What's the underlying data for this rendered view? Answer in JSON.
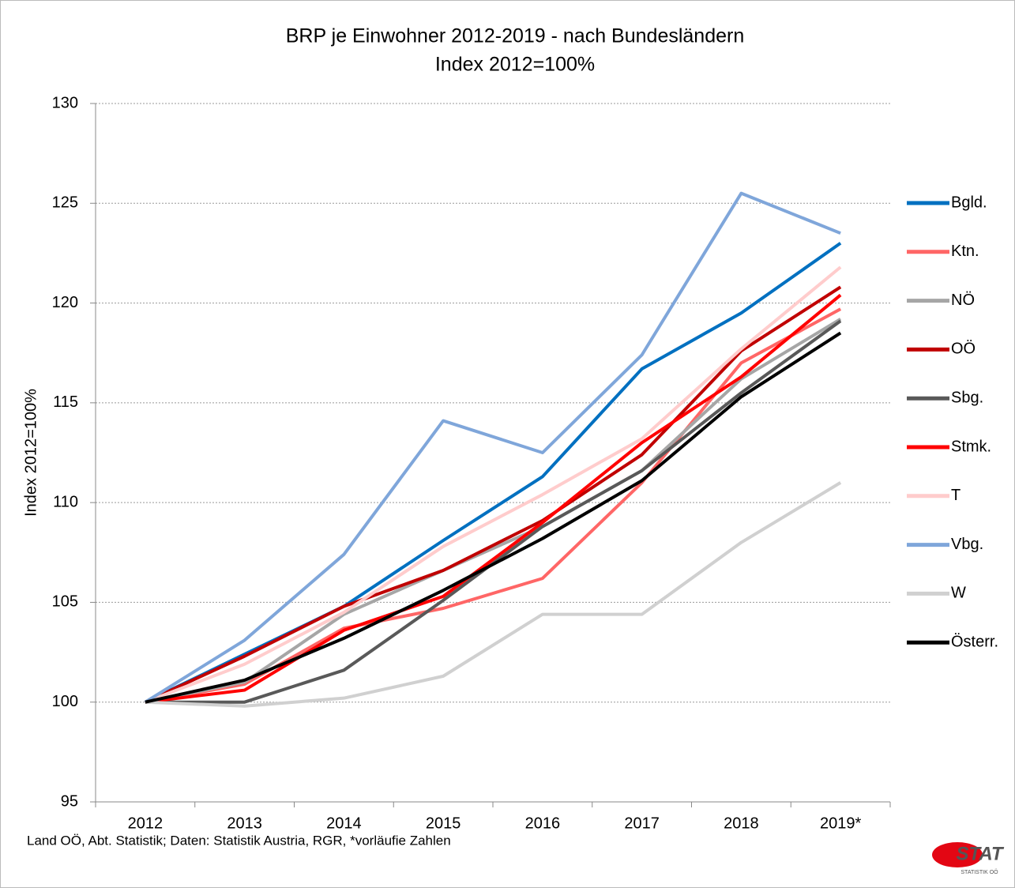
{
  "chart_data": {
    "type": "line",
    "title": "BRP je Einwohner 2012-2019 - nach Bundesländern",
    "subtitle": "Index 2012=100%",
    "y_label": "Index 2012=100%",
    "source": "Land OÖ, Abt. Statistik; Daten: Statistik Austria, RGR, *vorläufie Zahlen",
    "logo": {
      "text": "STAT",
      "subtext": "STATISTIK OÖ"
    },
    "categories": [
      "2012",
      "2013",
      "2014",
      "2015",
      "2016",
      "2017",
      "2018",
      "2019*"
    ],
    "ylim": [
      95,
      130
    ],
    "yticks": [
      95,
      100,
      105,
      110,
      115,
      120,
      125,
      130
    ],
    "grid": true,
    "legend": "right",
    "series": [
      {
        "name": "Bgld.",
        "color": "#0070c0",
        "values": [
          100,
          102.4,
          104.8,
          108.1,
          111.3,
          116.7,
          119.5,
          123.0
        ]
      },
      {
        "name": "Ktn.",
        "color": "#ff6666",
        "values": [
          100,
          100.9,
          103.7,
          104.7,
          106.2,
          111.0,
          117.0,
          119.7
        ]
      },
      {
        "name": "NÖ",
        "color": "#a6a6a6",
        "values": [
          100,
          101.0,
          104.4,
          106.6,
          108.8,
          111.6,
          116.2,
          119.2
        ]
      },
      {
        "name": "OÖ",
        "color": "#c00000",
        "values": [
          100,
          102.3,
          104.8,
          106.6,
          109.1,
          112.4,
          117.6,
          120.8
        ]
      },
      {
        "name": "Sbg.",
        "color": "#595959",
        "values": [
          100,
          100.0,
          101.6,
          105.1,
          108.8,
          111.6,
          115.5,
          119.1
        ]
      },
      {
        "name": "Stmk.",
        "color": "#ff0000",
        "values": [
          100,
          100.6,
          103.6,
          105.3,
          109.0,
          113.0,
          116.3,
          120.4
        ]
      },
      {
        "name": "T",
        "color": "#ffcccc",
        "values": [
          100,
          101.9,
          104.5,
          107.8,
          110.4,
          113.2,
          117.7,
          121.8
        ]
      },
      {
        "name": "Vbg.",
        "color": "#7fa6da",
        "values": [
          100,
          103.1,
          107.4,
          114.1,
          112.5,
          117.4,
          125.5,
          123.5
        ]
      },
      {
        "name": "W",
        "color": "#d0d0d0",
        "values": [
          100,
          99.8,
          100.2,
          101.3,
          104.4,
          104.4,
          108.0,
          111.0
        ]
      },
      {
        "name": "Österr.",
        "color": "#000000",
        "values": [
          100,
          101.1,
          103.2,
          105.6,
          108.2,
          111.1,
          115.3,
          118.5
        ]
      }
    ]
  }
}
